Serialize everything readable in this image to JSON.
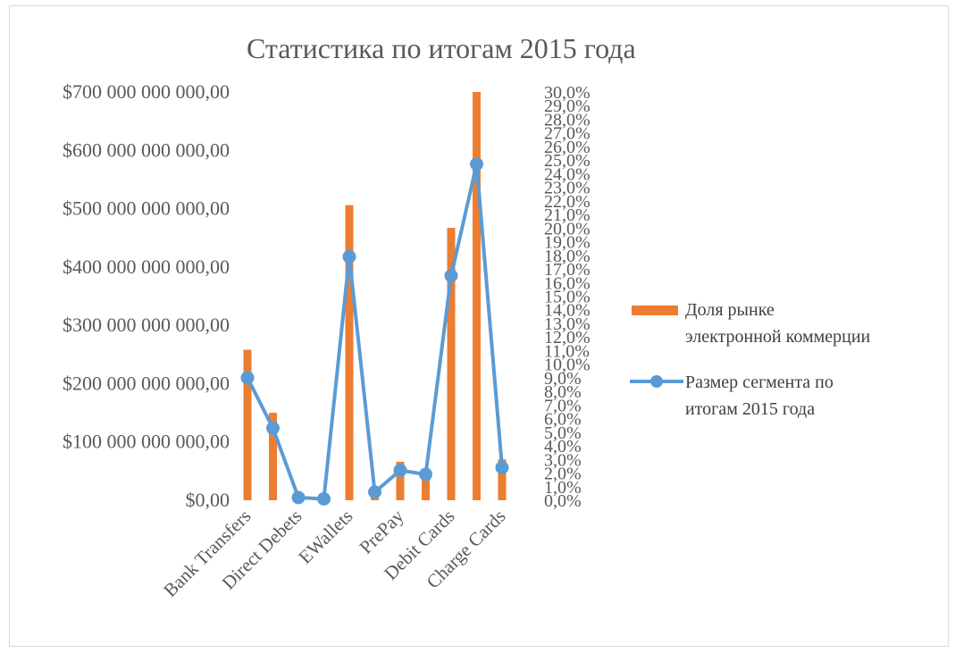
{
  "chart_data": {
    "type": "bar",
    "title": "Статистика по итогам 2015 года",
    "categories": [
      "Bank Transfers",
      "",
      "Direct Debets",
      "",
      "EWallets",
      "",
      "PrePay",
      "",
      "Debit Cards",
      "",
      "Charge Cards"
    ],
    "y_left": {
      "min": 0,
      "max": 700000000000,
      "tick_labels": [
        "$0,00",
        "$100 000 000 000,00",
        "$200 000 000 000,00",
        "$300 000 000 000,00",
        "$400 000 000 000,00",
        "$500 000 000 000,00",
        "$600 000 000 000,00",
        "$700 000 000 000,00"
      ]
    },
    "y_right": {
      "min": 0,
      "max": 30,
      "tick_labels": [
        "0,0%",
        "1,0%",
        "2,0%",
        "3,0%",
        "4,0%",
        "5,0%",
        "6,0%",
        "7,0%",
        "8,0%",
        "9,0%",
        "10,0%",
        "11,0%",
        "12,0%",
        "13,0%",
        "14,0%",
        "15,0%",
        "16,0%",
        "17,0%",
        "18,0%",
        "19,0%",
        "20,0%",
        "21,0%",
        "22,0%",
        "23,0%",
        "24,0%",
        "25,0%",
        "26,0%",
        "27,0%",
        "28,0%",
        "29,0%",
        "30,0%"
      ]
    },
    "series": [
      {
        "name_lines": [
          "Доля   рынке",
          "электронной коммерции"
        ],
        "kind": "bar",
        "axis": "left",
        "color": "#ed7d31",
        "values": [
          258000000000,
          150000000000,
          2000000000,
          1000000000,
          506000000000,
          8000000000,
          66000000000,
          45000000000,
          467000000000,
          700000000000,
          70000000000
        ]
      },
      {
        "name_lines": [
          "Размер сегмента  по",
          "итогам 2015 года"
        ],
        "kind": "line",
        "axis": "right",
        "color": "#5b9bd5",
        "values": [
          9.0,
          5.3,
          0.2,
          0.1,
          17.9,
          0.6,
          2.2,
          1.9,
          16.5,
          24.7,
          2.4
        ]
      }
    ],
    "legend_position": "right",
    "grid": false
  }
}
